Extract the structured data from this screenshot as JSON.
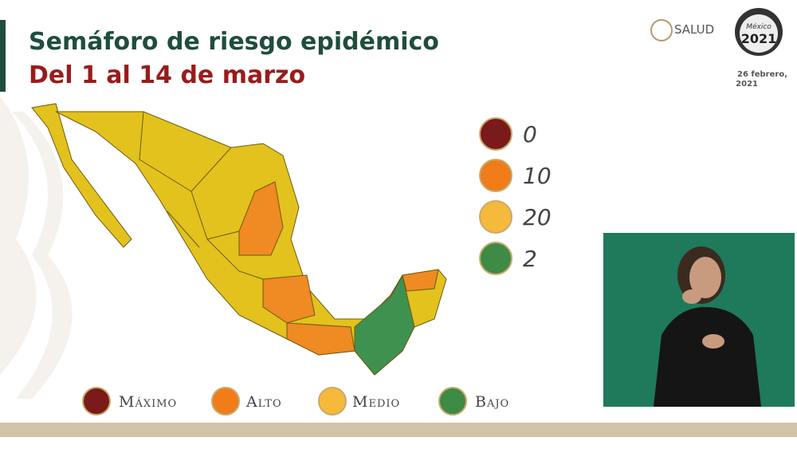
{
  "header": {
    "title": "Semáforo de riesgo epidémico",
    "subtitle": "Del 1 al 14 de marzo"
  },
  "logos": {
    "salud": "SALUD",
    "mexico": "México",
    "year": "2021"
  },
  "date": [
    "26 febrero,",
    "2021"
  ],
  "counts": [
    0,
    10,
    20,
    2
  ],
  "legend": [
    "Máximo",
    "Alto",
    "Medio",
    "Bajo"
  ]
}
